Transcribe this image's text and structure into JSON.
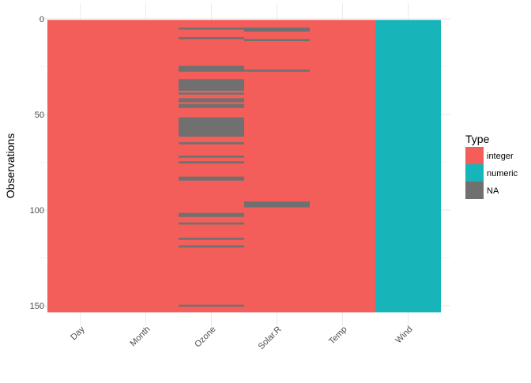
{
  "chart_data": {
    "type": "heatmap",
    "title": "",
    "xlabel": "",
    "ylabel": "Observations",
    "n_observations": 153,
    "ylim": [
      0,
      153
    ],
    "y_reversed": true,
    "y_ticks": [
      0,
      50,
      100,
      150
    ],
    "grid": true,
    "categories": [
      "Day",
      "Month",
      "Ozone",
      "Solar.R",
      "Temp",
      "Wind"
    ],
    "column_types": [
      "integer",
      "integer",
      "integer",
      "integer",
      "integer",
      "numeric"
    ],
    "missing_rows": {
      "Day": [],
      "Month": [],
      "Ozone": [
        5,
        10,
        25,
        26,
        27,
        32,
        33,
        34,
        35,
        36,
        37,
        39,
        42,
        43,
        45,
        46,
        52,
        53,
        54,
        55,
        56,
        57,
        58,
        59,
        60,
        61,
        65,
        72,
        75,
        83,
        84,
        102,
        103,
        107,
        115,
        119,
        150
      ],
      "Solar.R": [
        5,
        6,
        11,
        27,
        96,
        97,
        98
      ],
      "Temp": [],
      "Wind": []
    },
    "legend": {
      "title": "Type",
      "placement": "right",
      "entries": [
        {
          "label": "integer",
          "color": "#F8766D"
        },
        {
          "label": "numeric",
          "color": "#00BFC4"
        },
        {
          "label": "NA",
          "color": "#707070"
        }
      ]
    },
    "colors": {
      "integer": "#F35E5A",
      "numeric": "#17B4BA",
      "NA": "#707070"
    }
  }
}
